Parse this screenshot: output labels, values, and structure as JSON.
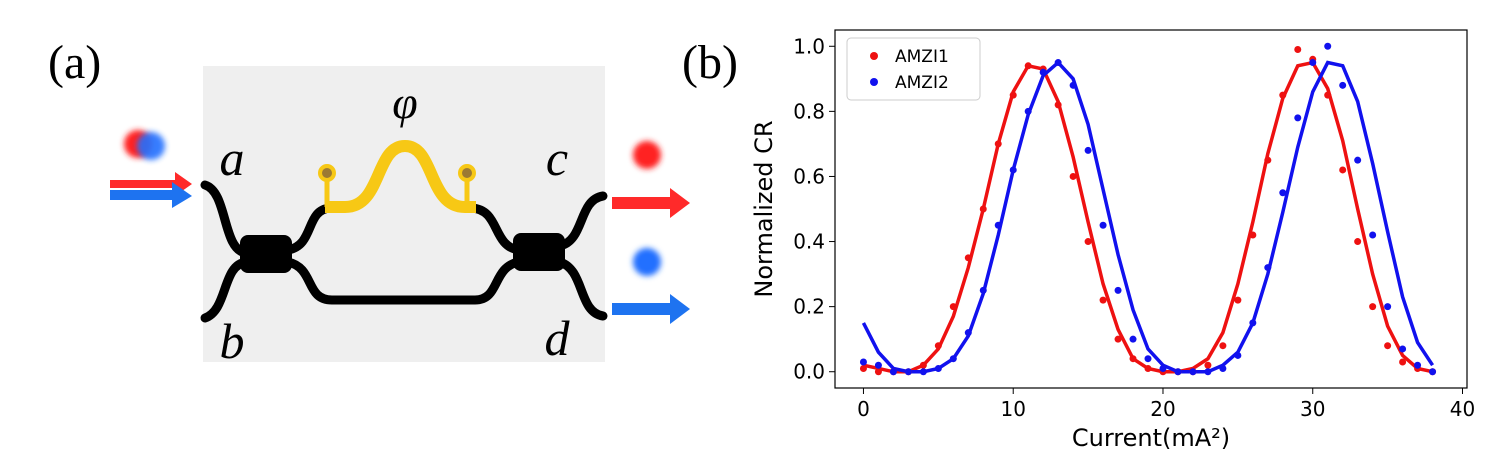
{
  "panel_labels": [
    "(a)",
    "(b)"
  ],
  "diagram": {
    "ports": [
      "a",
      "b",
      "c",
      "d"
    ],
    "phase": "φ"
  },
  "chart_data": {
    "type": "scatter",
    "xlabel": "Current(mA²)",
    "ylabel": "Normalized CR",
    "x": [
      0,
      1,
      2,
      3,
      4,
      5,
      6,
      7,
      8,
      9,
      10,
      11,
      12,
      13,
      14,
      15,
      16,
      17,
      18,
      19,
      20,
      21,
      22,
      23,
      24,
      25,
      26,
      27,
      28,
      29,
      30,
      31,
      32,
      33,
      34,
      35,
      36,
      37,
      38
    ],
    "series": [
      {
        "name": "AMZI1",
        "color": "#ee1111",
        "values": [
          0.01,
          0,
          0,
          0,
          0.02,
          0.08,
          0.2,
          0.35,
          0.5,
          0.7,
          0.85,
          0.94,
          0.93,
          0.82,
          0.6,
          0.4,
          0.22,
          0.1,
          0.04,
          0.01,
          0,
          0,
          0,
          0.02,
          0.08,
          0.22,
          0.42,
          0.65,
          0.85,
          0.99,
          0.96,
          0.85,
          0.62,
          0.4,
          0.2,
          0.08,
          0.03,
          0.01,
          0
        ]
      },
      {
        "name": "AMZI2",
        "color": "#1111ee",
        "values": [
          0.03,
          0.02,
          0,
          0,
          0,
          0.01,
          0.04,
          0.12,
          0.25,
          0.45,
          0.62,
          0.8,
          0.92,
          0.95,
          0.88,
          0.68,
          0.45,
          0.25,
          0.1,
          0.04,
          0.01,
          0,
          0,
          0,
          0.01,
          0.05,
          0.15,
          0.32,
          0.55,
          0.78,
          0.95,
          1.0,
          0.88,
          0.65,
          0.42,
          0.2,
          0.07,
          0.02,
          0
        ]
      }
    ],
    "fits": [
      {
        "color": "#ee1111",
        "values": [
          0.02,
          0.01,
          0,
          0,
          0.02,
          0.07,
          0.17,
          0.32,
          0.5,
          0.7,
          0.86,
          0.94,
          0.93,
          0.83,
          0.66,
          0.46,
          0.27,
          0.13,
          0.04,
          0.01,
          0,
          0,
          0.01,
          0.04,
          0.12,
          0.27,
          0.46,
          0.67,
          0.84,
          0.94,
          0.95,
          0.87,
          0.71,
          0.5,
          0.3,
          0.14,
          0.05,
          0.01,
          0
        ]
      },
      {
        "color": "#1111ee",
        "values": [
          0.15,
          0.06,
          0.01,
          0,
          0,
          0.01,
          0.04,
          0.11,
          0.24,
          0.42,
          0.62,
          0.79,
          0.91,
          0.95,
          0.9,
          0.76,
          0.56,
          0.36,
          0.19,
          0.07,
          0.02,
          0,
          0,
          0,
          0.02,
          0.06,
          0.15,
          0.3,
          0.49,
          0.69,
          0.86,
          0.95,
          0.94,
          0.83,
          0.64,
          0.43,
          0.23,
          0.09,
          0.02
        ]
      }
    ],
    "xlim": [
      -1.9,
      40.3
    ],
    "ylim": [
      -0.05,
      1.05
    ],
    "xticks": [
      0,
      10,
      20,
      30,
      40
    ],
    "yticks": [
      {
        "value": 0,
        "label": "0.0"
      },
      0.2,
      0.4,
      0.6,
      0.8,
      {
        "value": 1,
        "label": "1.0"
      }
    ],
    "legend": "upper left"
  }
}
